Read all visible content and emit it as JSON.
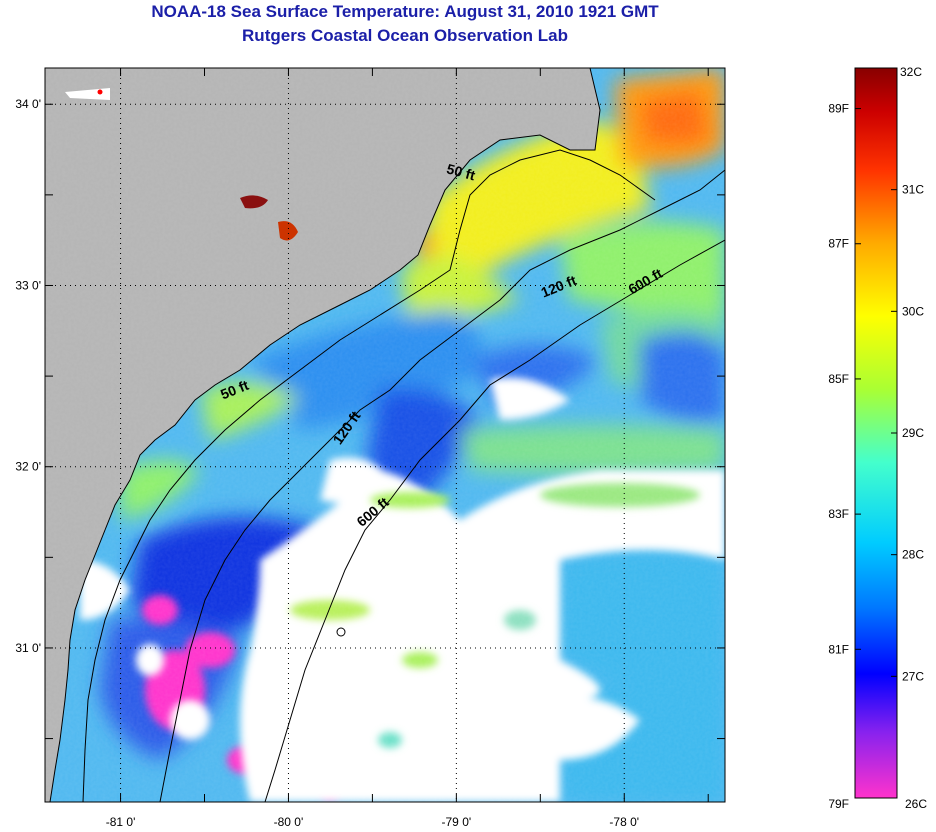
{
  "title": {
    "line1": "NOAA-18 Sea Surface Temperature:  August 31, 2010 1921 GMT",
    "line2": "Rutgers Coastal Ocean Observation Lab"
  },
  "map": {
    "lat_range": [
      30.15,
      34.2
    ],
    "lon_range": [
      -81.45,
      -77.4
    ],
    "lat_ticks": [
      {
        "value": 34.0,
        "label": "34 0'"
      },
      {
        "value": 33.0,
        "label": "33 0'"
      },
      {
        "value": 32.0,
        "label": "32 0'"
      },
      {
        "value": 31.0,
        "label": "31 0'"
      }
    ],
    "lon_ticks": [
      {
        "value": -81.0,
        "label": "-81 0'"
      },
      {
        "value": -80.0,
        "label": "-80 0'"
      },
      {
        "value": -79.0,
        "label": "-79 0'"
      },
      {
        "value": -78.0,
        "label": "-78 0'"
      }
    ],
    "contour_labels": [
      {
        "text": "50 ft",
        "lon": -78.98,
        "lat": 33.6,
        "angle": 15
      },
      {
        "text": "120 ft",
        "lon": -78.38,
        "lat": 32.97,
        "angle": -22
      },
      {
        "text": "600 ft",
        "lon": -77.86,
        "lat": 33.0,
        "angle": -30
      },
      {
        "text": "50 ft",
        "lon": -80.31,
        "lat": 32.4,
        "angle": -22
      },
      {
        "text": "120 ft",
        "lon": -79.63,
        "lat": 32.2,
        "angle": -55
      },
      {
        "text": "600 ft",
        "lon": -79.48,
        "lat": 31.73,
        "angle": -40
      }
    ],
    "colors": {
      "land": "#b4b4b4",
      "cloud": "#ffffff",
      "coast": "#000000"
    }
  },
  "colorbar": {
    "top_label": "32C",
    "bottom_left": "79F",
    "bottom_right": "26C",
    "celsius_labels": [
      {
        "label": "31C",
        "value": 31
      },
      {
        "label": "30C",
        "value": 30
      },
      {
        "label": "29C",
        "value": 29
      },
      {
        "label": "28C",
        "value": 28
      },
      {
        "label": "27C",
        "value": 27
      }
    ],
    "fahrenheit_labels": [
      {
        "label": "89F",
        "value": 89
      },
      {
        "label": "87F",
        "value": 87
      },
      {
        "label": "85F",
        "value": 85
      },
      {
        "label": "83F",
        "value": 83
      },
      {
        "label": "81F",
        "value": 81
      }
    ],
    "range_c": [
      26,
      32
    ],
    "gradient": [
      "#ff33cc",
      "#8822ee",
      "#0000ff",
      "#0077ff",
      "#00ccff",
      "#44ffcc",
      "#aaff33",
      "#ffff00",
      "#ffaa00",
      "#ff3300",
      "#cc0000",
      "#880000"
    ]
  }
}
